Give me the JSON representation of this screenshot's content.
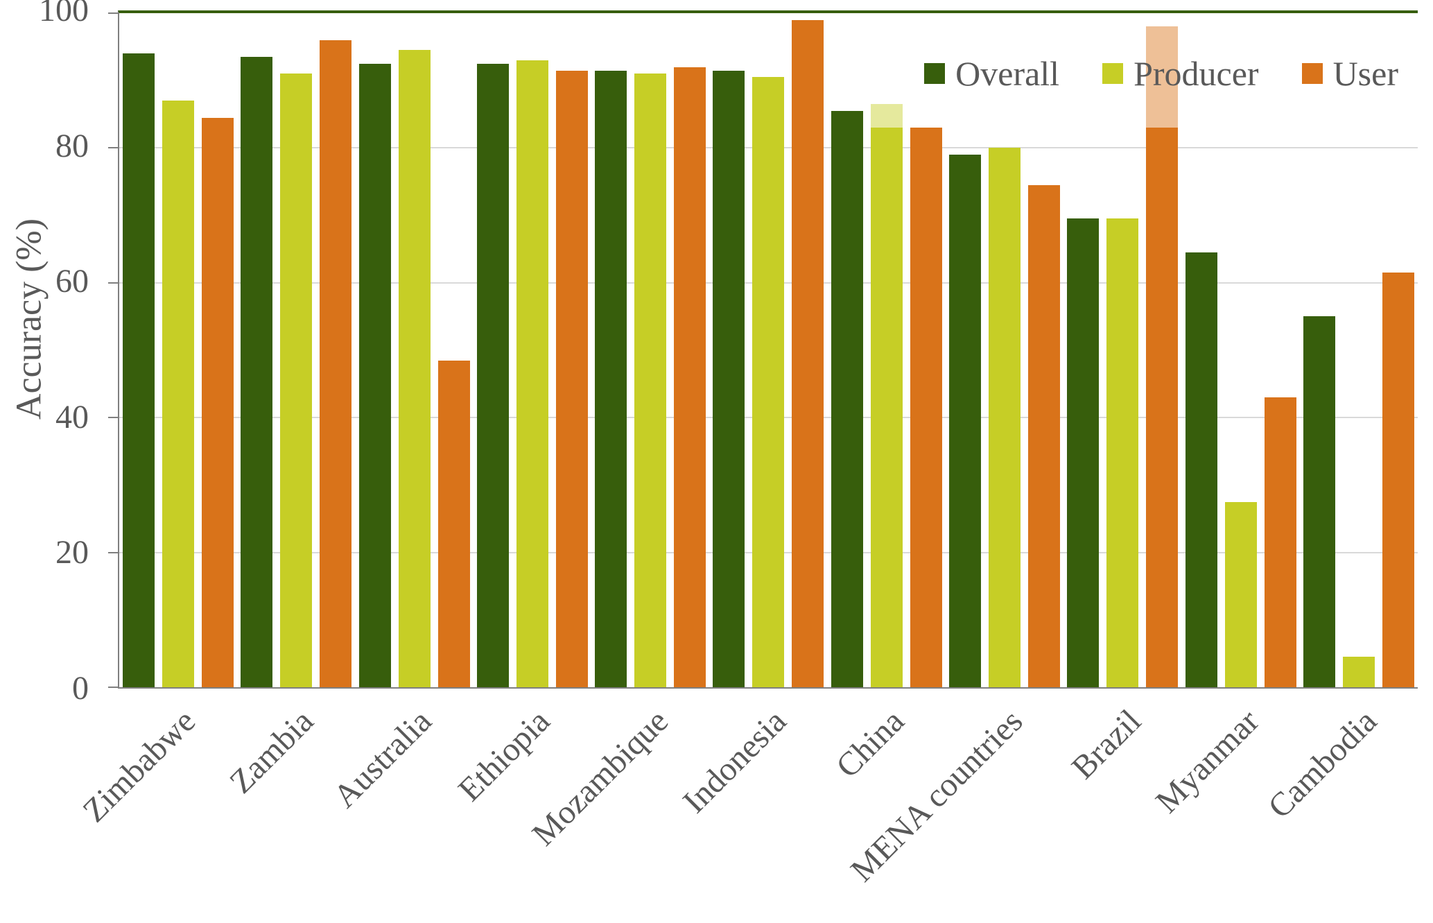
{
  "figure": {
    "background": "#ffffff"
  },
  "chart_data": {
    "type": "bar",
    "title": "",
    "xlabel": "",
    "ylabel": "Accuracy (%)",
    "ylim": [
      0,
      100
    ],
    "yticks": [
      0,
      20,
      40,
      60,
      80,
      100
    ],
    "grid": "horizontal",
    "legend_position": "top-right-inside",
    "categories": [
      "Zimbabwe",
      "Zambia",
      "Australia",
      "Ethiopia",
      "Mozambique",
      "Indonesia",
      "China",
      "MENA countries",
      "Brazil",
      "Myanmar",
      "Cambodia"
    ],
    "series": [
      {
        "name": "Overall",
        "color": "#375e0c",
        "values": [
          94,
          93.5,
          92.5,
          92.5,
          91.5,
          91.5,
          85.5,
          79,
          69.5,
          64.5,
          55
        ]
      },
      {
        "name": "Producer",
        "color": "#c6ce26",
        "values": [
          87,
          91,
          94.5,
          93,
          91,
          90.5,
          86.5,
          80,
          69.5,
          27.5,
          4.5
        ]
      },
      {
        "name": "User",
        "color": "#d9731a",
        "values": [
          84.5,
          96,
          48.5,
          91.5,
          92,
          99,
          83,
          74.5,
          98,
          43,
          61.5
        ]
      }
    ],
    "faded_bar_tops": [
      {
        "category": "China",
        "series": "Producer",
        "fade_above": 83
      },
      {
        "category": "Brazil",
        "series": "User",
        "fade_above": 83
      }
    ],
    "colors": {
      "grid": "#d9d9d9",
      "axis": "#7f7f7f",
      "top_border": "#375e0c",
      "text": "#595959"
    }
  }
}
